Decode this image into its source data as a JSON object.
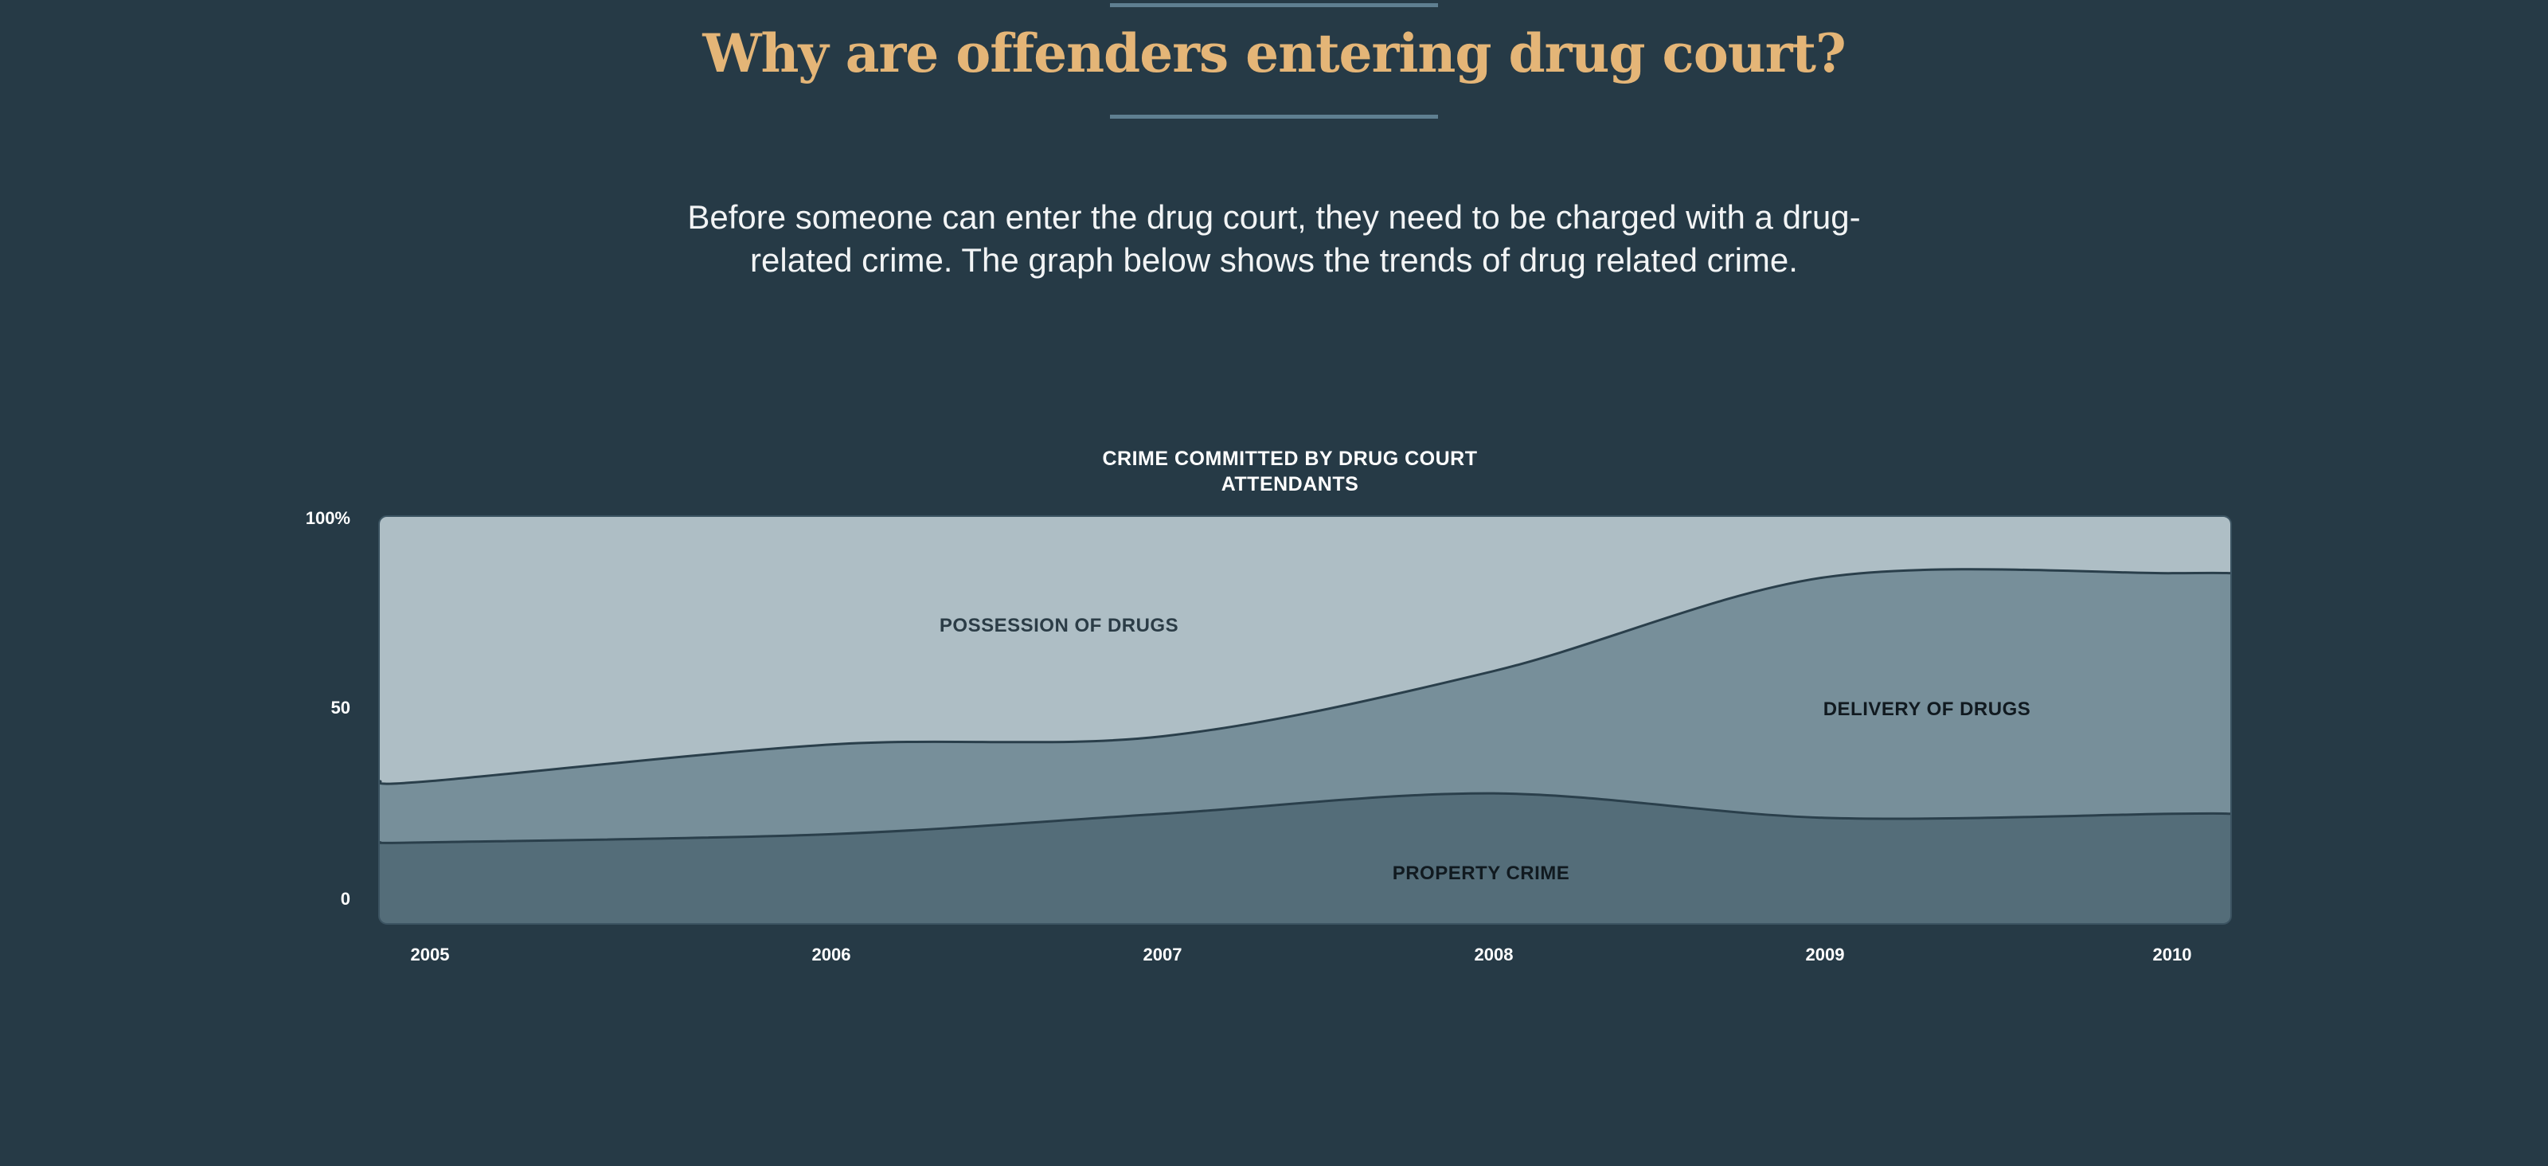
{
  "header": {
    "title": "Why are offenders entering drug court?",
    "intro": "Before someone can enter the drug court, they need to be charged with a drug-related crime. The graph below shows the trends of drug related crime."
  },
  "colors": {
    "background": "#263a46",
    "title": "#e4b577",
    "possession": "#aebec5",
    "delivery": "#778f9a",
    "property": "#546d79",
    "line": "#2a3f4b"
  },
  "chart_data": {
    "type": "area",
    "stacked": true,
    "title": "CRIME COMMITTED BY DRUG COURT ATTENDANTS",
    "x": [
      "2005",
      "2006",
      "2007",
      "2008",
      "2009",
      "2010"
    ],
    "y_ticks": [
      "100%",
      "50",
      "0"
    ],
    "ylim": [
      0,
      100
    ],
    "series": [
      {
        "name": "PROPERTY CRIME",
        "values": [
          20,
          22,
          27,
          32,
          26,
          27
        ]
      },
      {
        "name": "DELIVERY OF DRUGS",
        "values": [
          15,
          22,
          19,
          30,
          59,
          59
        ]
      },
      {
        "name": "POSSESSION OF DRUGS",
        "values": [
          65,
          56,
          54,
          38,
          15,
          14
        ]
      }
    ],
    "grid": false,
    "legend": "labels inside areas"
  }
}
